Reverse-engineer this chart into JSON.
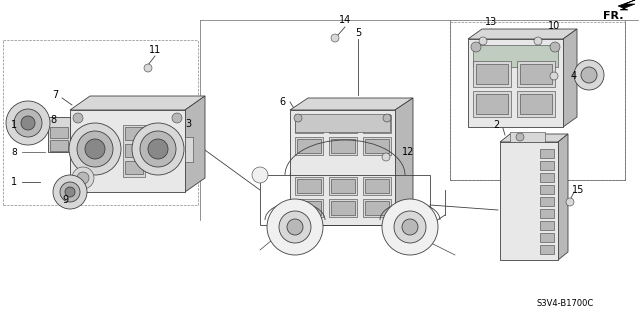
{
  "background_color": "#ffffff",
  "diagram_code": "S3V4-B1700C",
  "line_color": "#404040",
  "light_gray": "#d8d8d8",
  "med_gray": "#b8b8b8",
  "dark_gray": "#888888",
  "face_color": "#e8e8e8",
  "shadow_color": "#c0c0c0",
  "lw_thick": 0.9,
  "lw_med": 0.6,
  "lw_thin": 0.4,
  "figsize": [
    6.4,
    3.2
  ],
  "dpi": 100
}
